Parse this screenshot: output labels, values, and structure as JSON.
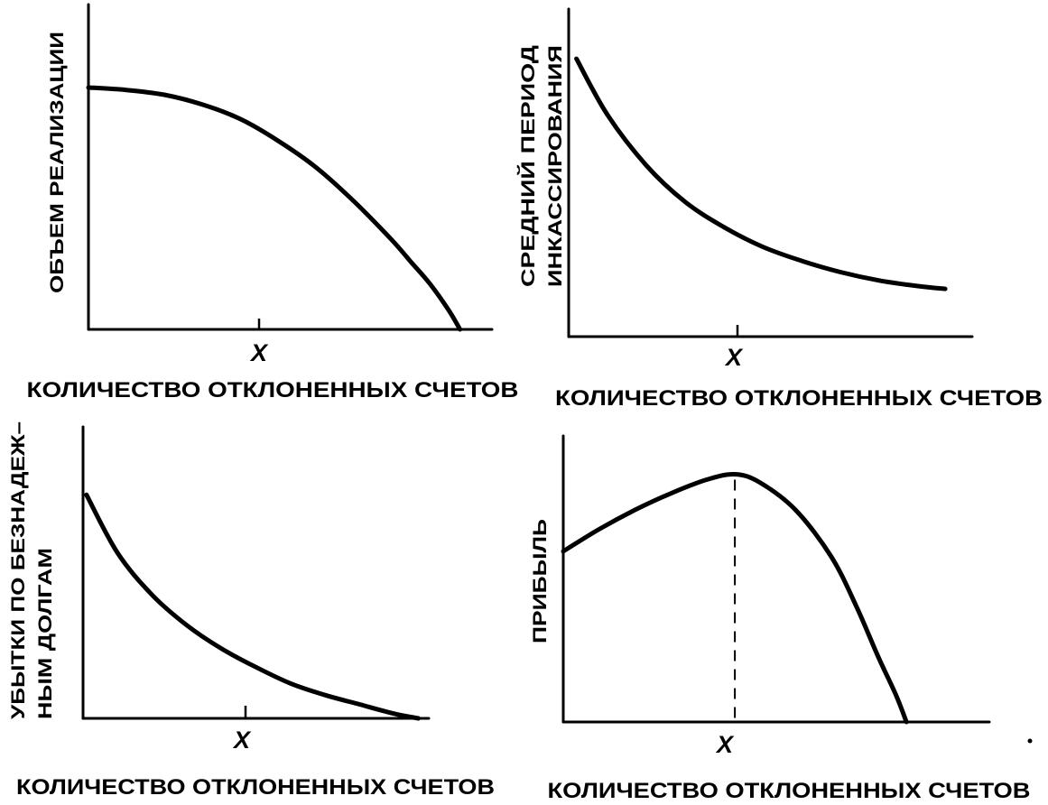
{
  "chart_data": [
    {
      "type": "line",
      "ylabel": [
        "ОБЪЕМ РЕАЛИЗАЦИИ"
      ],
      "xlabel": "КОЛИЧЕСТВО ОТКЛОНЕННЫХ СЧЕТОВ",
      "x_tick_label": "X",
      "x_tick": 0.48,
      "xlim": [
        0,
        1
      ],
      "ylim": [
        0,
        1
      ],
      "grid": false,
      "legend": "none",
      "series": [
        {
          "x": [
            0,
            0.1,
            0.2,
            0.3,
            0.4,
            0.5,
            0.6,
            0.7,
            0.8,
            0.85,
            0.9,
            0.95,
            0.98
          ],
          "y": [
            1.0,
            0.99,
            0.97,
            0.93,
            0.87,
            0.78,
            0.67,
            0.53,
            0.37,
            0.28,
            0.19,
            0.08,
            0.0
          ]
        }
      ]
    },
    {
      "type": "line",
      "ylabel": [
        "СРЕДНИЙ ПЕРИОД",
        "ИНКАССИРОВАНИЯ"
      ],
      "xlabel": "КОЛИЧЕСТВО ОТКЛОНЕННЫХ СЧЕТОВ",
      "x_tick_label": "X",
      "x_tick": 0.48,
      "xlim": [
        0,
        1
      ],
      "ylim": [
        0,
        1
      ],
      "grid": false,
      "legend": "none",
      "series": [
        {
          "x": [
            0.02,
            0.1,
            0.2,
            0.3,
            0.4,
            0.5,
            0.6,
            0.7,
            0.8,
            0.9,
            0.97
          ],
          "y": [
            0.99,
            0.79,
            0.61,
            0.48,
            0.39,
            0.32,
            0.27,
            0.23,
            0.2,
            0.18,
            0.17
          ]
        }
      ]
    },
    {
      "type": "line",
      "ylabel": [
        "УБЫТКИ ПО БЕЗНАДЕЖ–",
        "НЫМ ДОЛГАМ"
      ],
      "xlabel": "КОЛИЧЕСТВО ОТКЛОНЕННЫХ СЧЕТОВ",
      "x_tick_label": "X",
      "x_tick": 0.48,
      "xlim": [
        0,
        1
      ],
      "ylim": [
        0,
        1
      ],
      "grid": false,
      "legend": "none",
      "series": [
        {
          "x": [
            0.01,
            0.1,
            0.2,
            0.3,
            0.4,
            0.5,
            0.6,
            0.7,
            0.8,
            0.9,
            0.97
          ],
          "y": [
            0.96,
            0.71,
            0.53,
            0.4,
            0.3,
            0.22,
            0.15,
            0.1,
            0.06,
            0.02,
            0.0
          ]
        }
      ]
    },
    {
      "type": "line",
      "ylabel": [
        "ПРИБЫЛЬ"
      ],
      "xlabel": "КОЛИЧЕСТВО ОТКЛОНЕННЫХ СЧЕТОВ",
      "x_tick_label": "X",
      "x_tick": 0.48,
      "xlim": [
        0,
        1
      ],
      "ylim": [
        0,
        1
      ],
      "grid": false,
      "legend": "none",
      "series": [
        {
          "x": [
            0,
            0.1,
            0.2,
            0.3,
            0.4,
            0.48,
            0.55,
            0.65,
            0.75,
            0.82,
            0.88,
            0.93,
            0.96
          ],
          "y": [
            0.62,
            0.7,
            0.77,
            0.83,
            0.88,
            0.9,
            0.87,
            0.77,
            0.6,
            0.42,
            0.24,
            0.1,
            0.0
          ]
        }
      ]
    }
  ]
}
